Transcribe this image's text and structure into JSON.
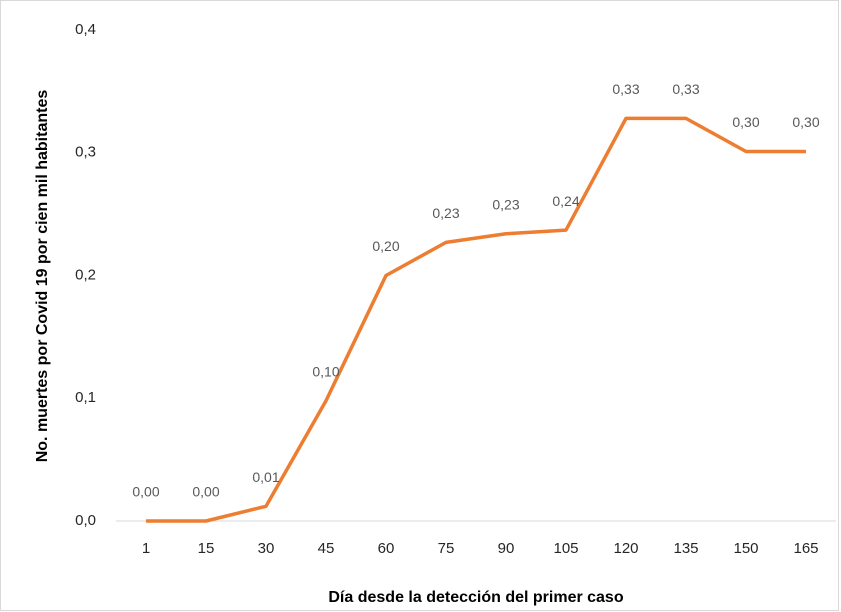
{
  "chart_data": {
    "type": "line",
    "y_axis_label": "No. muertes por Covid 19 por cien mil habitantes",
    "x_axis_label": "Día desde la detección del primer caso",
    "categories": [
      "1",
      "15",
      "30",
      "45",
      "60",
      "75",
      "90",
      "105",
      "120",
      "135",
      "150",
      "165"
    ],
    "values": [
      0,
      0,
      0.012,
      0.098,
      0.2,
      0.227,
      0.234,
      0.237,
      0.328,
      0.328,
      0.301,
      0.301
    ],
    "value_labels": [
      "0,00",
      "0,00",
      "0,01",
      "0,10",
      "0,20",
      "0,23",
      "0,23",
      "0,24",
      "0,33",
      "0,33",
      "0,30",
      "0,30"
    ],
    "color": "#ed7d31",
    "ylim": [
      0,
      0.4
    ],
    "yticks": [
      {
        "value": 0,
        "label": "0,0"
      },
      {
        "value": 0.1,
        "label": "0,1"
      },
      {
        "value": 0.2,
        "label": "0,2"
      },
      {
        "value": 0.3,
        "label": "0,3"
      },
      {
        "value": 0.4,
        "label": "0,4"
      }
    ],
    "grid": false
  }
}
